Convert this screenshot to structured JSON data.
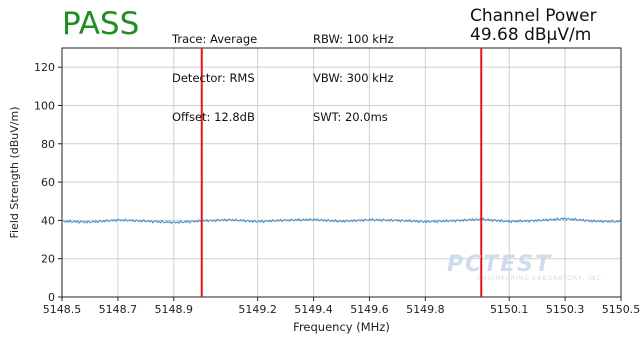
{
  "status": {
    "text": "PASS",
    "color": "#1f8f1f"
  },
  "settings": {
    "col1": [
      "Trace: Average",
      "Detector: RMS",
      "Offset: 12.8dB"
    ],
    "col2": [
      "RBW: 100 kHz",
      "VBW: 300 kHz",
      "SWT: 20.0ms"
    ]
  },
  "channel_power": {
    "label": "Channel Power",
    "value": "49.68 dBµV/m"
  },
  "watermark": {
    "main": "PCTEST",
    "sub": "ENGINEERING LABORATORY, INC."
  },
  "chart_data": {
    "type": "line",
    "xlabel": "Frequency (MHz)",
    "ylabel": "Field Strength (dBuV/m)",
    "xlim": [
      5148.5,
      5150.5
    ],
    "ylim": [
      0,
      130
    ],
    "x_ticks": [
      5148.5,
      5148.7,
      5148.9,
      5149.2,
      5149.4,
      5149.6,
      5149.8,
      5150.1,
      5150.3,
      5150.5
    ],
    "x_tick_labels": [
      "5148.5",
      "5148.7",
      "5148.9",
      "5149.2",
      "5149.4",
      "5149.6",
      "5149.8",
      "5150.1",
      "5150.3",
      "5150.5"
    ],
    "y_ticks": [
      0,
      20,
      40,
      60,
      80,
      100,
      120
    ],
    "y_tick_labels": [
      "0",
      "20",
      "40",
      "60",
      "80",
      "100",
      "120"
    ],
    "grid": true,
    "colors": {
      "trace": "#4a90c8",
      "markers": "#e8141a",
      "grid": "#cfcfcf"
    },
    "vertical_markers": [
      5149.0,
      5150.0
    ],
    "series": [
      {
        "x": [
          5148.5,
          5148.6,
          5148.7,
          5148.8,
          5148.9,
          5149.0,
          5149.1,
          5149.2,
          5149.3,
          5149.4,
          5149.5,
          5149.6,
          5149.7,
          5149.8,
          5149.9,
          5150.0,
          5150.1,
          5150.2,
          5150.3,
          5150.4,
          5150.5
        ],
        "values": [
          39.5,
          39.1,
          40.2,
          39.6,
          38.9,
          39.7,
          40.3,
          39.4,
          40.1,
          40.4,
          39.5,
          40.3,
          40.0,
          39.3,
          39.8,
          40.6,
          39.4,
          39.9,
          40.9,
          39.6,
          39.3
        ]
      }
    ]
  }
}
